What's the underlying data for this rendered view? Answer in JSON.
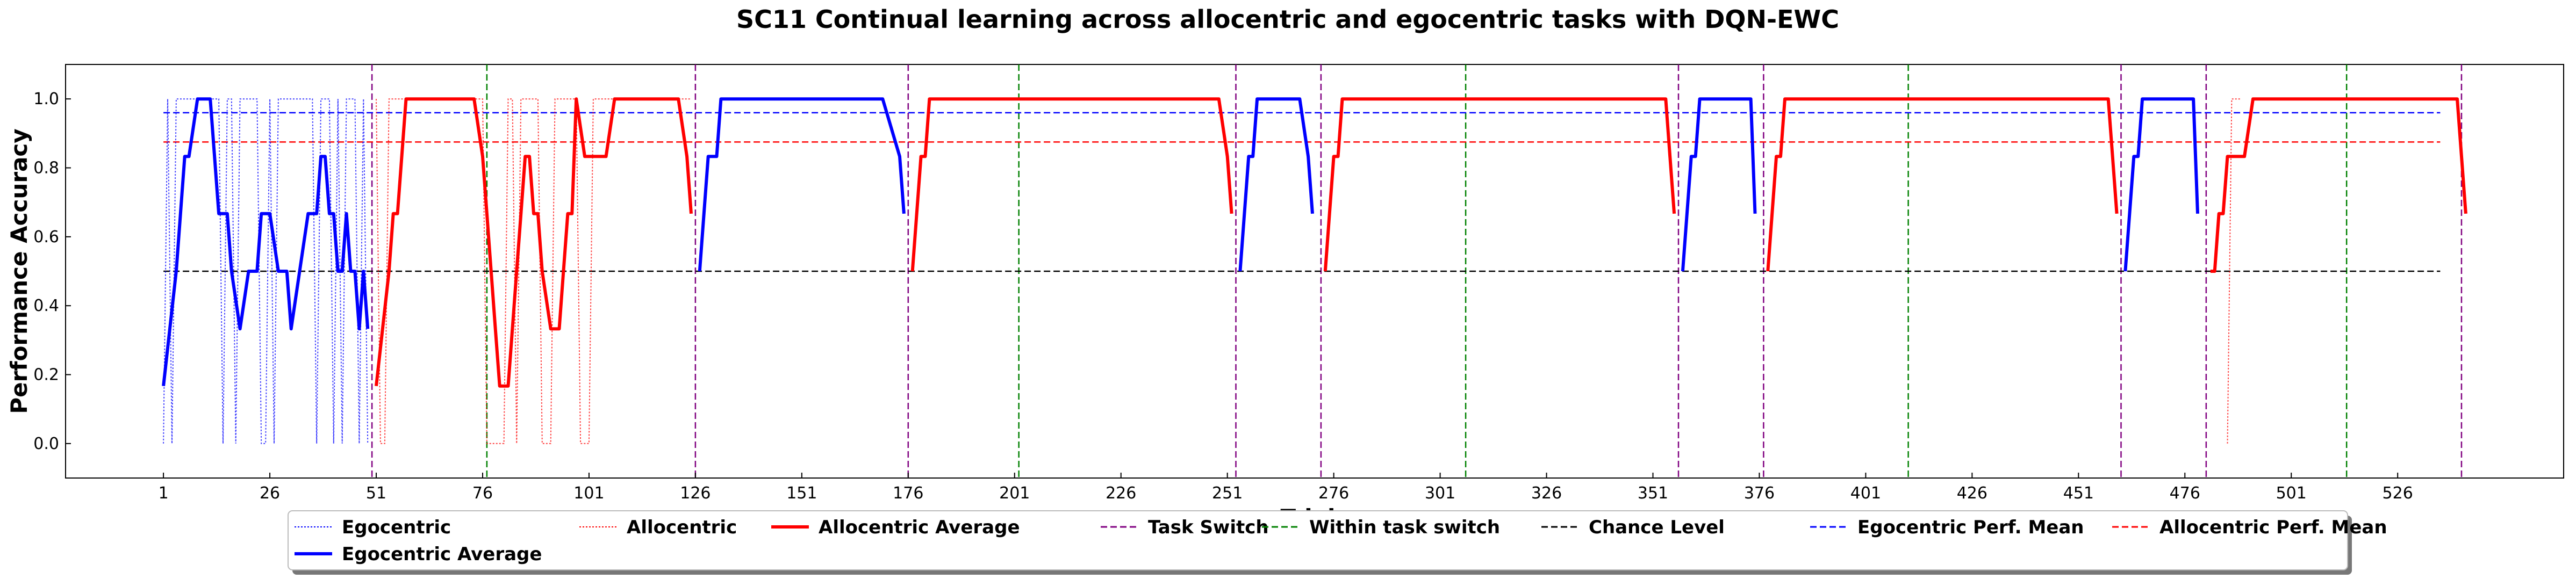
{
  "chart_data": {
    "type": "line",
    "title": "SC11 Continual learning across allocentric and egocentric tasks with DQN-EWC",
    "xlabel": "Trials",
    "ylabel": "Performance Accuracy",
    "xlim": [
      -22,
      565
    ],
    "ylim": [
      -0.1,
      1.1
    ],
    "x_ticks": [
      1,
      26,
      51,
      76,
      101,
      126,
      151,
      176,
      201,
      226,
      251,
      276,
      301,
      326,
      351,
      376,
      401,
      426,
      451,
      476,
      501,
      526
    ],
    "y_ticks": [
      0.0,
      0.2,
      0.4,
      0.6,
      0.8,
      1.0
    ],
    "y_tick_labels": [
      "0.0",
      "0.2",
      "0.4",
      "0.6",
      "0.8",
      "1.0"
    ],
    "legend_placement": "bottom-center",
    "grid": false,
    "colors": {
      "egocentric": "#0000ff",
      "allocentric": "#ff0000",
      "task_switch": "#800080",
      "within_task_switch": "#008000",
      "chance": "#000000"
    },
    "task_switches": [
      50,
      126,
      176,
      253,
      273,
      357,
      377,
      461,
      481,
      541
    ],
    "within_task_switches": [
      77,
      202,
      307,
      411,
      514
    ],
    "chance_level": 0.5,
    "chance_range": [
      1,
      536
    ],
    "egocentric_perf_mean": 0.96,
    "allocentric_perf_mean": 0.875,
    "perf_mean_range": [
      1,
      536
    ],
    "legend": [
      {
        "key": "egocentric",
        "label": "Egocentric"
      },
      {
        "key": "allocentric",
        "label": "Allocentric"
      },
      {
        "key": "allocentric_average",
        "label": "Allocentric Average"
      },
      {
        "key": "task_switch",
        "label": "Task Switch"
      },
      {
        "key": "within_task_switch",
        "label": "Within task switch"
      },
      {
        "key": "chance_level",
        "label": "Chance Level"
      },
      {
        "key": "egocentric_perf_mean",
        "label": "Egocentric Perf. Mean"
      },
      {
        "key": "allocentric_perf_mean",
        "label": "Allocentric Perf. Mean"
      },
      {
        "key": "egocentric_average",
        "label": "Egocentric Average"
      }
    ],
    "series": [
      {
        "name": "Egocentric",
        "style": "raw",
        "x": [
          1,
          2,
          3,
          4,
          5,
          6,
          7,
          8,
          9,
          10,
          11,
          12,
          13,
          14,
          15,
          16,
          17,
          18,
          19,
          20,
          21,
          22,
          23,
          24,
          25,
          26,
          27,
          28,
          29,
          30,
          31,
          32,
          33,
          34,
          35,
          36,
          37,
          38,
          39,
          40,
          41,
          42,
          43,
          44,
          45,
          46,
          47,
          48,
          49
        ],
        "y": [
          0,
          1,
          0,
          1,
          1,
          1,
          1,
          1,
          1,
          1,
          1,
          1,
          1,
          1,
          0,
          1,
          1,
          0,
          1,
          1,
          1,
          1,
          1,
          0,
          0,
          1,
          0,
          1,
          1,
          1,
          1,
          1,
          1,
          1,
          1,
          1,
          0,
          1,
          1,
          1,
          0,
          1,
          0,
          1,
          1,
          1,
          0,
          1,
          0
        ]
      },
      {
        "name": "Egocentric Average",
        "style": "average",
        "segments": [
          {
            "x": [
              1,
              4,
              6,
              7,
              9,
              10,
              12,
              14,
              16,
              17,
              19,
              21,
              23,
              24,
              26,
              28,
              30,
              31,
              33,
              35,
              37,
              38,
              39,
              40,
              41,
              42,
              43,
              44,
              45,
              46,
              47,
              48,
              49
            ],
            "y": [
              0.167,
              0.5,
              0.833,
              0.833,
              1.0,
              1.0,
              1.0,
              0.667,
              0.667,
              0.5,
              0.333,
              0.5,
              0.5,
              0.667,
              0.667,
              0.5,
              0.5,
              0.333,
              0.5,
              0.667,
              0.667,
              0.833,
              0.833,
              0.667,
              0.667,
              0.5,
              0.5,
              0.667,
              0.5,
              0.5,
              0.333,
              0.5,
              0.333
            ]
          },
          {
            "x": [
              127,
              129,
              131,
              132,
              133,
              170,
              174,
              175
            ],
            "y": [
              0.5,
              0.833,
              0.833,
              1.0,
              1.0,
              1.0,
              0.833,
              0.667
            ]
          },
          {
            "x": [
              254,
              256,
              257,
              258,
              265,
              268,
              270,
              271
            ],
            "y": [
              0.5,
              0.833,
              0.833,
              1.0,
              1.0,
              1.0,
              0.833,
              0.667
            ]
          },
          {
            "x": [
              358,
              360,
              361,
              362,
              370,
              374,
              375
            ],
            "y": [
              0.5,
              0.833,
              0.833,
              1.0,
              1.0,
              1.0,
              0.667
            ]
          },
          {
            "x": [
              462,
              464,
              465,
              466,
              474,
              478,
              479
            ],
            "y": [
              0.5,
              0.833,
              0.833,
              1.0,
              1.0,
              1.0,
              0.667
            ]
          }
        ]
      },
      {
        "name": "Allocentric",
        "style": "raw",
        "x": [
          51,
          52,
          53,
          54,
          55,
          56,
          57,
          58,
          59,
          60,
          61,
          62,
          63,
          64,
          65,
          66,
          67,
          68,
          69,
          70,
          71,
          72,
          73,
          74,
          75,
          76,
          77,
          78,
          79,
          80,
          81,
          82,
          83,
          84,
          85,
          86,
          87,
          88,
          89,
          90,
          91,
          92,
          93,
          94,
          95,
          96,
          97,
          98,
          99,
          100,
          101,
          102,
          103,
          104,
          105,
          106,
          107,
          108,
          109,
          110,
          111,
          112,
          113,
          114,
          115,
          116,
          117,
          118,
          119,
          120,
          121,
          122,
          123,
          124,
          125,
          486,
          487,
          488,
          489
        ],
        "y": [
          1,
          0,
          0,
          1,
          1,
          1,
          1,
          1,
          1,
          1,
          1,
          1,
          1,
          1,
          1,
          1,
          1,
          1,
          1,
          1,
          1,
          1,
          1,
          1,
          1,
          1,
          0,
          0,
          0,
          0,
          0,
          1,
          1,
          0,
          1,
          1,
          1,
          1,
          1,
          0,
          0,
          0,
          1,
          1,
          1,
          1,
          1,
          1,
          0,
          0,
          0,
          1,
          1,
          1,
          1,
          1,
          1,
          1,
          1,
          1,
          1,
          1,
          1,
          1,
          1,
          1,
          1,
          1,
          1,
          1,
          1,
          1,
          1,
          1,
          1,
          0,
          1,
          1,
          1
        ]
      },
      {
        "name": "Allocentric Average",
        "style": "average",
        "segments": [
          {
            "x": [
              51,
              54,
              55,
              56,
              58,
              60,
              72,
              74,
              76,
              77,
              78,
              79,
              80,
              82,
              84,
              85,
              86,
              87,
              88,
              89,
              90,
              92,
              94,
              95,
              96,
              97,
              98,
              100,
              101,
              103,
              105,
              107,
              108,
              110,
              122,
              124,
              125
            ],
            "y": [
              0.167,
              0.5,
              0.667,
              0.667,
              1.0,
              1.0,
              1.0,
              1.0,
              0.833,
              0.667,
              0.5,
              0.333,
              0.167,
              0.167,
              0.5,
              0.667,
              0.833,
              0.833,
              0.667,
              0.667,
              0.5,
              0.333,
              0.333,
              0.5,
              0.667,
              0.667,
              1.0,
              0.833,
              0.833,
              0.833,
              0.833,
              1.0,
              1.0,
              1.0,
              1.0,
              0.833,
              0.667
            ]
          },
          {
            "x": [
              177,
              179,
              180,
              181,
              182,
              183,
              184,
              247,
              249,
              251,
              252
            ],
            "y": [
              0.5,
              0.833,
              0.833,
              1.0,
              1.0,
              1.0,
              1.0,
              1.0,
              1.0,
              0.833,
              0.667
            ]
          },
          {
            "x": [
              274,
              276,
              277,
              278,
              279,
              280,
              281,
              352,
              354,
              355,
              356
            ],
            "y": [
              0.5,
              0.833,
              0.833,
              1.0,
              1.0,
              1.0,
              1.0,
              1.0,
              1.0,
              0.833,
              0.667
            ]
          },
          {
            "x": [
              378,
              380,
              381,
              382,
              383,
              384,
              385,
              456,
              458,
              459,
              460
            ],
            "y": [
              0.5,
              0.833,
              0.833,
              1.0,
              1.0,
              1.0,
              1.0,
              1.0,
              1.0,
              0.833,
              0.667
            ]
          },
          {
            "x": [
              482,
              483,
              484,
              485,
              486,
              487,
              488,
              490,
              492,
              493,
              540,
              542
            ],
            "y": [
              0.5,
              0.5,
              0.667,
              0.667,
              0.833,
              0.833,
              0.833,
              0.833,
              1.0,
              1.0,
              1.0,
              0.667
            ]
          }
        ]
      }
    ]
  }
}
